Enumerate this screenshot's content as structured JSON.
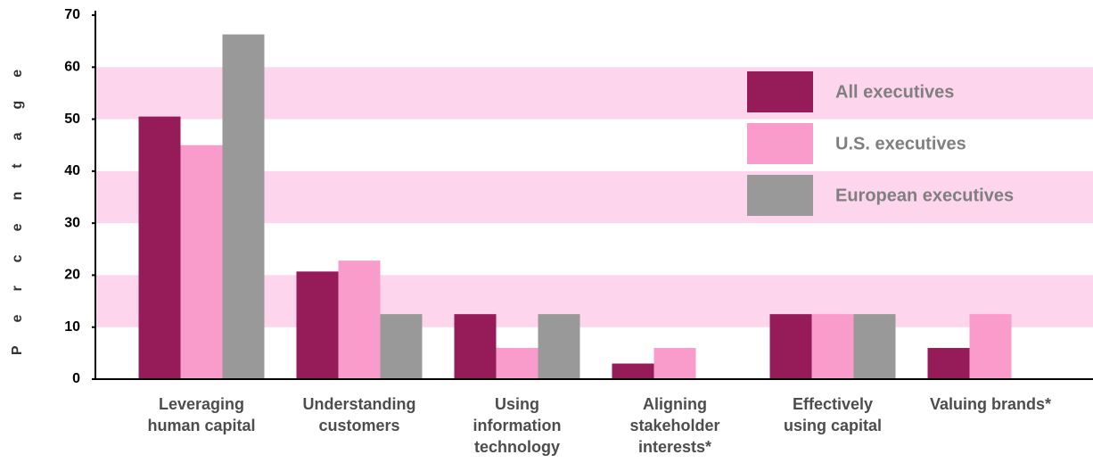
{
  "chart_data": {
    "type": "bar",
    "y_label": "Percentage",
    "categories": [
      "Leveraging\nhuman capital",
      "Understanding\ncustomers",
      "Using\ninformation\ntechnology",
      "Aligning\nstakeholder\ninterests*",
      "Effectively\nusing capital",
      "Valuing brands*"
    ],
    "series": [
      {
        "name": "All executives",
        "color": "#951b59",
        "values": [
          50.5,
          20.7,
          12.5,
          3,
          12.5,
          6
        ]
      },
      {
        "name": "U.S. executives",
        "color": "#f99bcb",
        "values": [
          45,
          22.8,
          6,
          6,
          12.5,
          12.5
        ]
      },
      {
        "name": "European executives",
        "color": "#999999",
        "values": [
          66.3,
          12.5,
          12.5,
          null,
          12.5,
          null
        ]
      }
    ],
    "ylim": [
      0,
      70
    ],
    "yticks": [
      0,
      10,
      20,
      30,
      40,
      50,
      60,
      70
    ],
    "band_color": "#fdd5ec"
  }
}
